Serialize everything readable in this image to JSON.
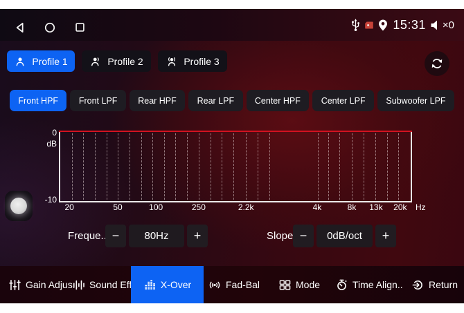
{
  "status_bar": {
    "time": "15:31",
    "volume_text": "×0",
    "nav_icons": [
      "back",
      "home",
      "recents"
    ],
    "right_icons": [
      "usb",
      "sd-card",
      "location",
      "volume-mute"
    ]
  },
  "profiles": {
    "items": [
      {
        "label": "Profile 1",
        "active": true
      },
      {
        "label": "Profile 2",
        "active": false
      },
      {
        "label": "Profile 3",
        "active": false
      }
    ]
  },
  "filters": {
    "items": [
      {
        "label": "Front HPF",
        "active": true
      },
      {
        "label": "Front LPF",
        "active": false
      },
      {
        "label": "Rear HPF",
        "active": false
      },
      {
        "label": "Rear LPF",
        "active": false
      },
      {
        "label": "Center HPF",
        "active": false
      },
      {
        "label": "Center LPF",
        "active": false
      },
      {
        "label": "Subwoofer LPF",
        "active": false
      }
    ]
  },
  "chart": {
    "type": "line",
    "x_scale": "log",
    "ylabel": "dB",
    "y_max_label": "0",
    "y_min_label": "-10",
    "ylim": [
      -10,
      0
    ],
    "x_unit_label": "Hz",
    "x_ticks": [
      {
        "label": "20",
        "pct": 3.0
      },
      {
        "label": "50",
        "pct": 16.8
      },
      {
        "label": "100",
        "pct": 27.7
      },
      {
        "label": "250",
        "pct": 39.9
      },
      {
        "label": "2.2k",
        "pct": 53.4
      },
      {
        "label": "4k",
        "pct": 73.7
      },
      {
        "label": "8k",
        "pct": 83.6
      },
      {
        "label": "13k",
        "pct": 90.5
      },
      {
        "label": "20k",
        "pct": 97.4
      }
    ],
    "gridlines_pct": [
      3.3,
      6.6,
      9.9,
      13.2,
      16.5,
      19.8,
      23.1,
      26.3,
      29.6,
      32.9,
      36.2,
      39.5,
      42.8,
      46.1,
      49.4,
      53.0,
      56.3,
      59.6,
      73.5,
      76.4,
      79.7,
      83.3,
      86.6,
      89.9,
      93.2,
      96.5
    ],
    "curve": {
      "shape": "flat",
      "level_db": 0,
      "color": "#d21220"
    }
  },
  "controls": {
    "frequency": {
      "label": "Freque..",
      "minus": "−",
      "value": "80Hz",
      "plus": "+"
    },
    "slope": {
      "label": "Slope",
      "minus": "−",
      "value": "0dB/oct",
      "plus": "+"
    }
  },
  "bottom_nav": {
    "items": [
      {
        "label": "Gain Adjus..",
        "active": false
      },
      {
        "label": "Sound Effe..",
        "active": false
      },
      {
        "label": "X-Over",
        "active": true
      },
      {
        "label": "Fad-Bal",
        "active": false
      },
      {
        "label": "Mode",
        "active": false
      },
      {
        "label": "Time Align..",
        "active": false
      },
      {
        "label": "Return",
        "active": false
      }
    ]
  },
  "colors": {
    "accent_blue": "#0d63f3",
    "curve_red": "#d21220",
    "panel_dark": "#1e1c22"
  }
}
